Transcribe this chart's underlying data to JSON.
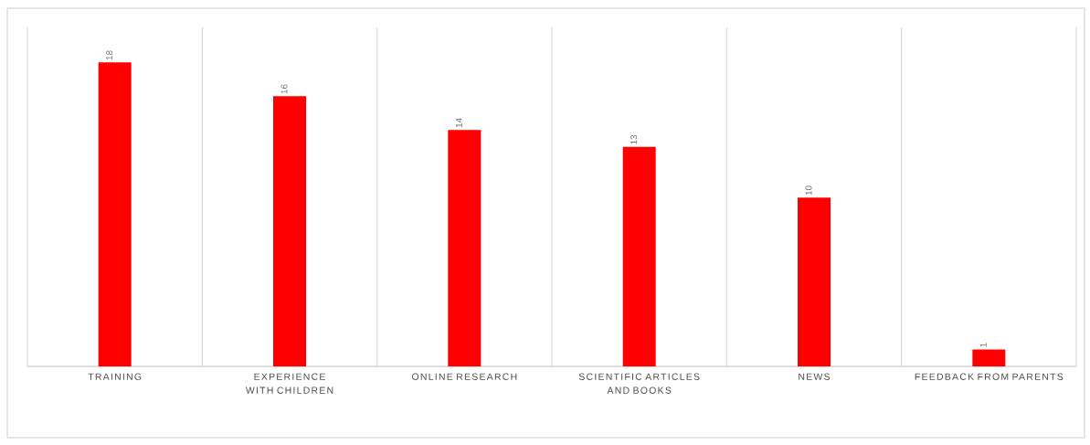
{
  "chart_data": {
    "type": "bar",
    "categories": [
      "TRAINING",
      "EXPERIENCE WITH CHILDREN",
      "ONLINE RESEARCH",
      "SCIENTIFIC ARTICLES AND BOOKS",
      "NEWS",
      "FEEDBACK FROM PARENTS"
    ],
    "values": [
      18,
      16,
      14,
      13,
      10,
      1
    ],
    "color": "#ff0000",
    "data_labels": true,
    "grid": "x"
  }
}
